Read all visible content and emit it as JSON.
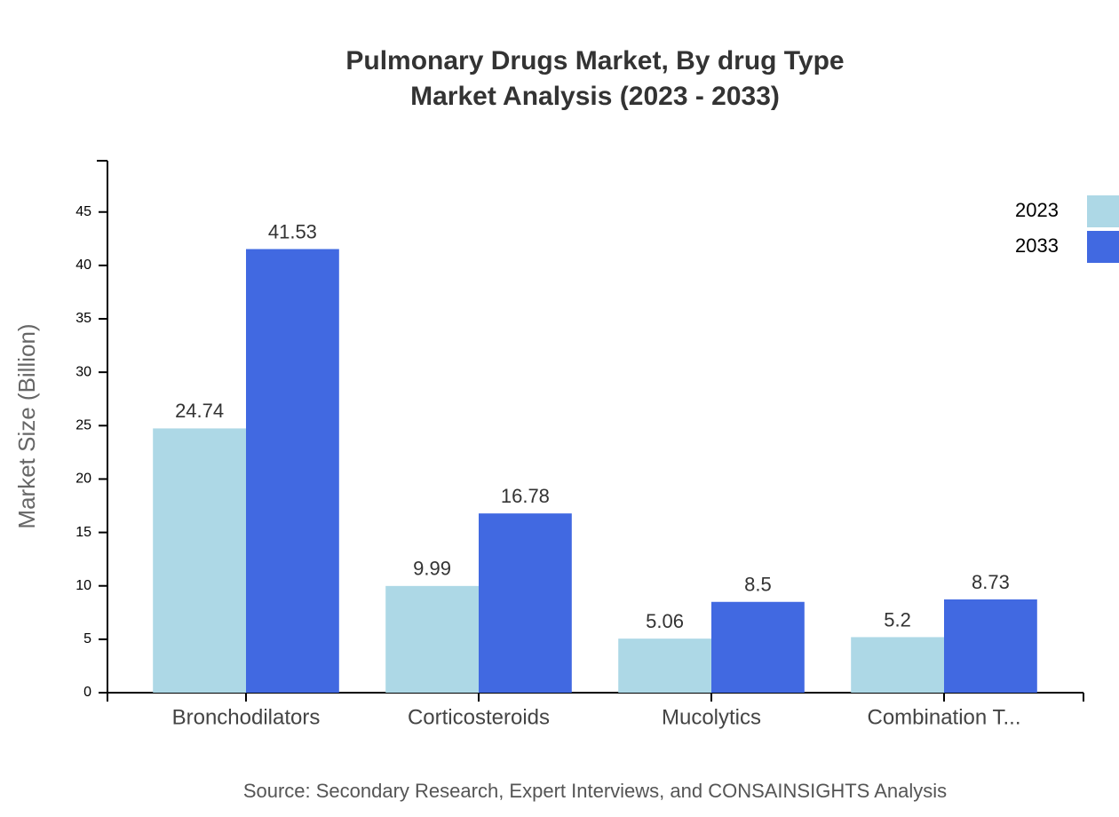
{
  "chart_data": {
    "type": "bar",
    "title": "Pulmonary Drugs Market, By drug Type",
    "subtitle": "Market Analysis (2023 - 2033)",
    "y_label": "Market Size (Billion)",
    "source": "Source: Secondary Research, Expert Interviews, and CONSAINSIGHTS Analysis",
    "categories": [
      "Bronchodilators",
      "Corticosteroids",
      "Mucolytics",
      "Combination T..."
    ],
    "series": [
      {
        "name": "2023",
        "color": "#add8e6",
        "values": [
          24.74,
          9.99,
          5.06,
          5.2
        ]
      },
      {
        "name": "2033",
        "color": "#4169e1",
        "values": [
          41.53,
          16.78,
          8.5,
          8.73
        ]
      }
    ],
    "ylim": [
      0,
      49.8
    ],
    "yticks": [
      0,
      5,
      10,
      15,
      20,
      25,
      30,
      35,
      40,
      45
    ],
    "legend": "top-right"
  }
}
